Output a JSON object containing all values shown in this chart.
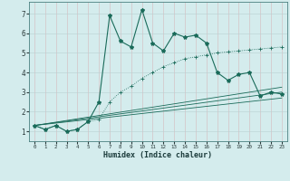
{
  "xlabel": "Humidex (Indice chaleur)",
  "xlim": [
    -0.5,
    23.5
  ],
  "ylim": [
    0.5,
    7.6
  ],
  "xticks": [
    0,
    1,
    2,
    3,
    4,
    5,
    6,
    7,
    8,
    9,
    10,
    11,
    12,
    13,
    14,
    15,
    16,
    17,
    18,
    19,
    20,
    21,
    22,
    23
  ],
  "yticks": [
    1,
    2,
    3,
    4,
    5,
    6,
    7
  ],
  "bg_color": "#d4eced",
  "line_color": "#1a6b5a",
  "grid_color_major": "#b8d4d6",
  "grid_color_minor": "#c8e0e2",
  "series1_x": [
    0,
    1,
    2,
    3,
    4,
    5,
    6,
    7,
    8,
    9,
    10,
    11,
    12,
    13,
    14,
    15,
    16,
    17,
    18,
    19,
    20,
    21,
    22,
    23
  ],
  "series1_y": [
    1.3,
    1.1,
    1.3,
    1.0,
    1.1,
    1.5,
    2.5,
    6.9,
    5.6,
    5.3,
    7.2,
    5.5,
    5.1,
    6.0,
    5.8,
    5.9,
    5.5,
    4.0,
    3.6,
    3.9,
    4.0,
    2.8,
    3.0,
    2.9
  ],
  "series2_x": [
    0,
    1,
    2,
    3,
    4,
    5,
    6,
    7,
    8,
    9,
    10,
    11,
    12,
    13,
    14,
    15,
    16,
    17,
    18,
    19,
    20,
    21,
    22,
    23
  ],
  "series2_y": [
    1.3,
    1.1,
    1.3,
    1.0,
    1.1,
    1.5,
    1.6,
    2.5,
    3.0,
    3.3,
    3.7,
    4.0,
    4.3,
    4.5,
    4.7,
    4.8,
    4.9,
    5.0,
    5.05,
    5.1,
    5.15,
    5.2,
    5.25,
    5.3
  ],
  "line3_x": [
    0,
    23
  ],
  "line3_y": [
    1.3,
    3.25
  ],
  "line4_x": [
    0,
    23
  ],
  "line4_y": [
    1.3,
    3.0
  ],
  "line5_x": [
    0,
    23
  ],
  "line5_y": [
    1.3,
    2.7
  ]
}
